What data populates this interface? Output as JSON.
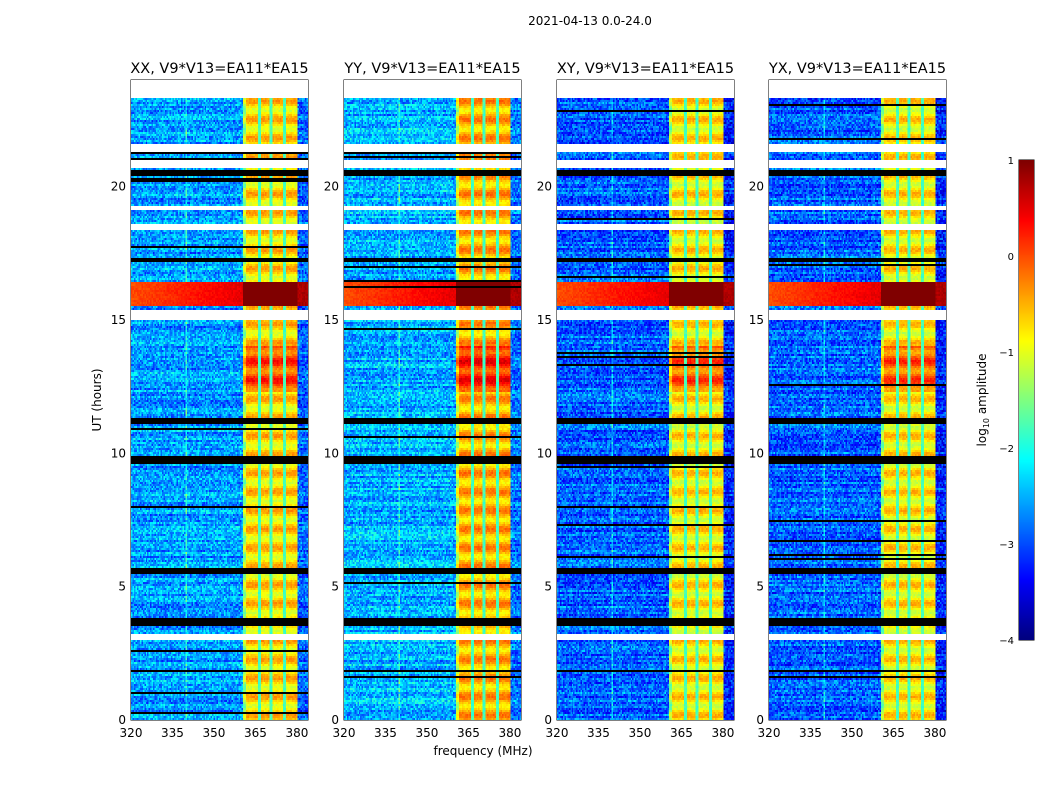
{
  "figure": {
    "suptitle": "2021-04-13 0.0-24.0",
    "colormap": "jet"
  },
  "chart_data": {
    "type": "heatmap",
    "title": "2021-04-13 0.0-24.0",
    "xlabel": "frequency (MHz)",
    "ylabel": "UT (hours)",
    "xlim": [
      320,
      384
    ],
    "ylim": [
      0,
      24
    ],
    "xticks": [
      320,
      335,
      350,
      365,
      380
    ],
    "yticks": [
      0,
      5,
      10,
      15,
      20
    ],
    "grid": false,
    "panels": [
      {
        "name": "XX",
        "title": "XX, V9*V13=EA11*EA15",
        "background_level": -2.6,
        "band_level": -0.7,
        "rfi_level": 0.6
      },
      {
        "name": "YY",
        "title": "YY, V9*V13=EA11*EA15",
        "background_level": -2.5,
        "band_level": -0.5,
        "rfi_level": 0.6
      },
      {
        "name": "XY",
        "title": "XY, V9*V13=EA11*EA15",
        "background_level": -2.9,
        "band_level": -0.8,
        "rfi_level": 0.6
      },
      {
        "name": "YX",
        "title": "YX, V9*V13=EA11*EA15",
        "background_level": -2.9,
        "band_level": -0.8,
        "rfi_level": 0.6
      }
    ],
    "signal_band_mhz": [
      360.5,
      380
    ],
    "subband_gaps_mhz": [
      366.3,
      370.8,
      375.3
    ],
    "rfi_interval_hours": [
      15.5,
      16.4
    ],
    "strong_interval_hours": [
      12.3,
      14.0
    ],
    "flagged_blank_hours": [
      [
        23.3,
        24.0
      ],
      [
        21.3,
        21.6
      ],
      [
        20.7,
        21.0
      ],
      [
        19.1,
        19.3
      ],
      [
        18.4,
        18.6
      ],
      [
        15.0,
        15.4
      ],
      [
        3.0,
        3.2
      ]
    ],
    "flagged_black_hours": [
      [
        23.8,
        24.0
      ],
      [
        20.4,
        20.6
      ],
      [
        17.2,
        17.3
      ],
      [
        11.1,
        11.3
      ],
      [
        9.6,
        9.9
      ],
      [
        5.5,
        5.7
      ],
      [
        3.5,
        3.8
      ],
      [
        1.8,
        1.9
      ]
    ],
    "colorbar": {
      "label": "log10 amplitude",
      "label_main": "log",
      "label_sub": "10",
      "label_rest": " amplitude",
      "range": [
        -4,
        1
      ],
      "ticks": [
        1,
        0,
        -1,
        -2,
        -3,
        -4
      ],
      "tick_labels": [
        "1",
        "0",
        "−1",
        "−2",
        "−3",
        "−4"
      ]
    }
  }
}
